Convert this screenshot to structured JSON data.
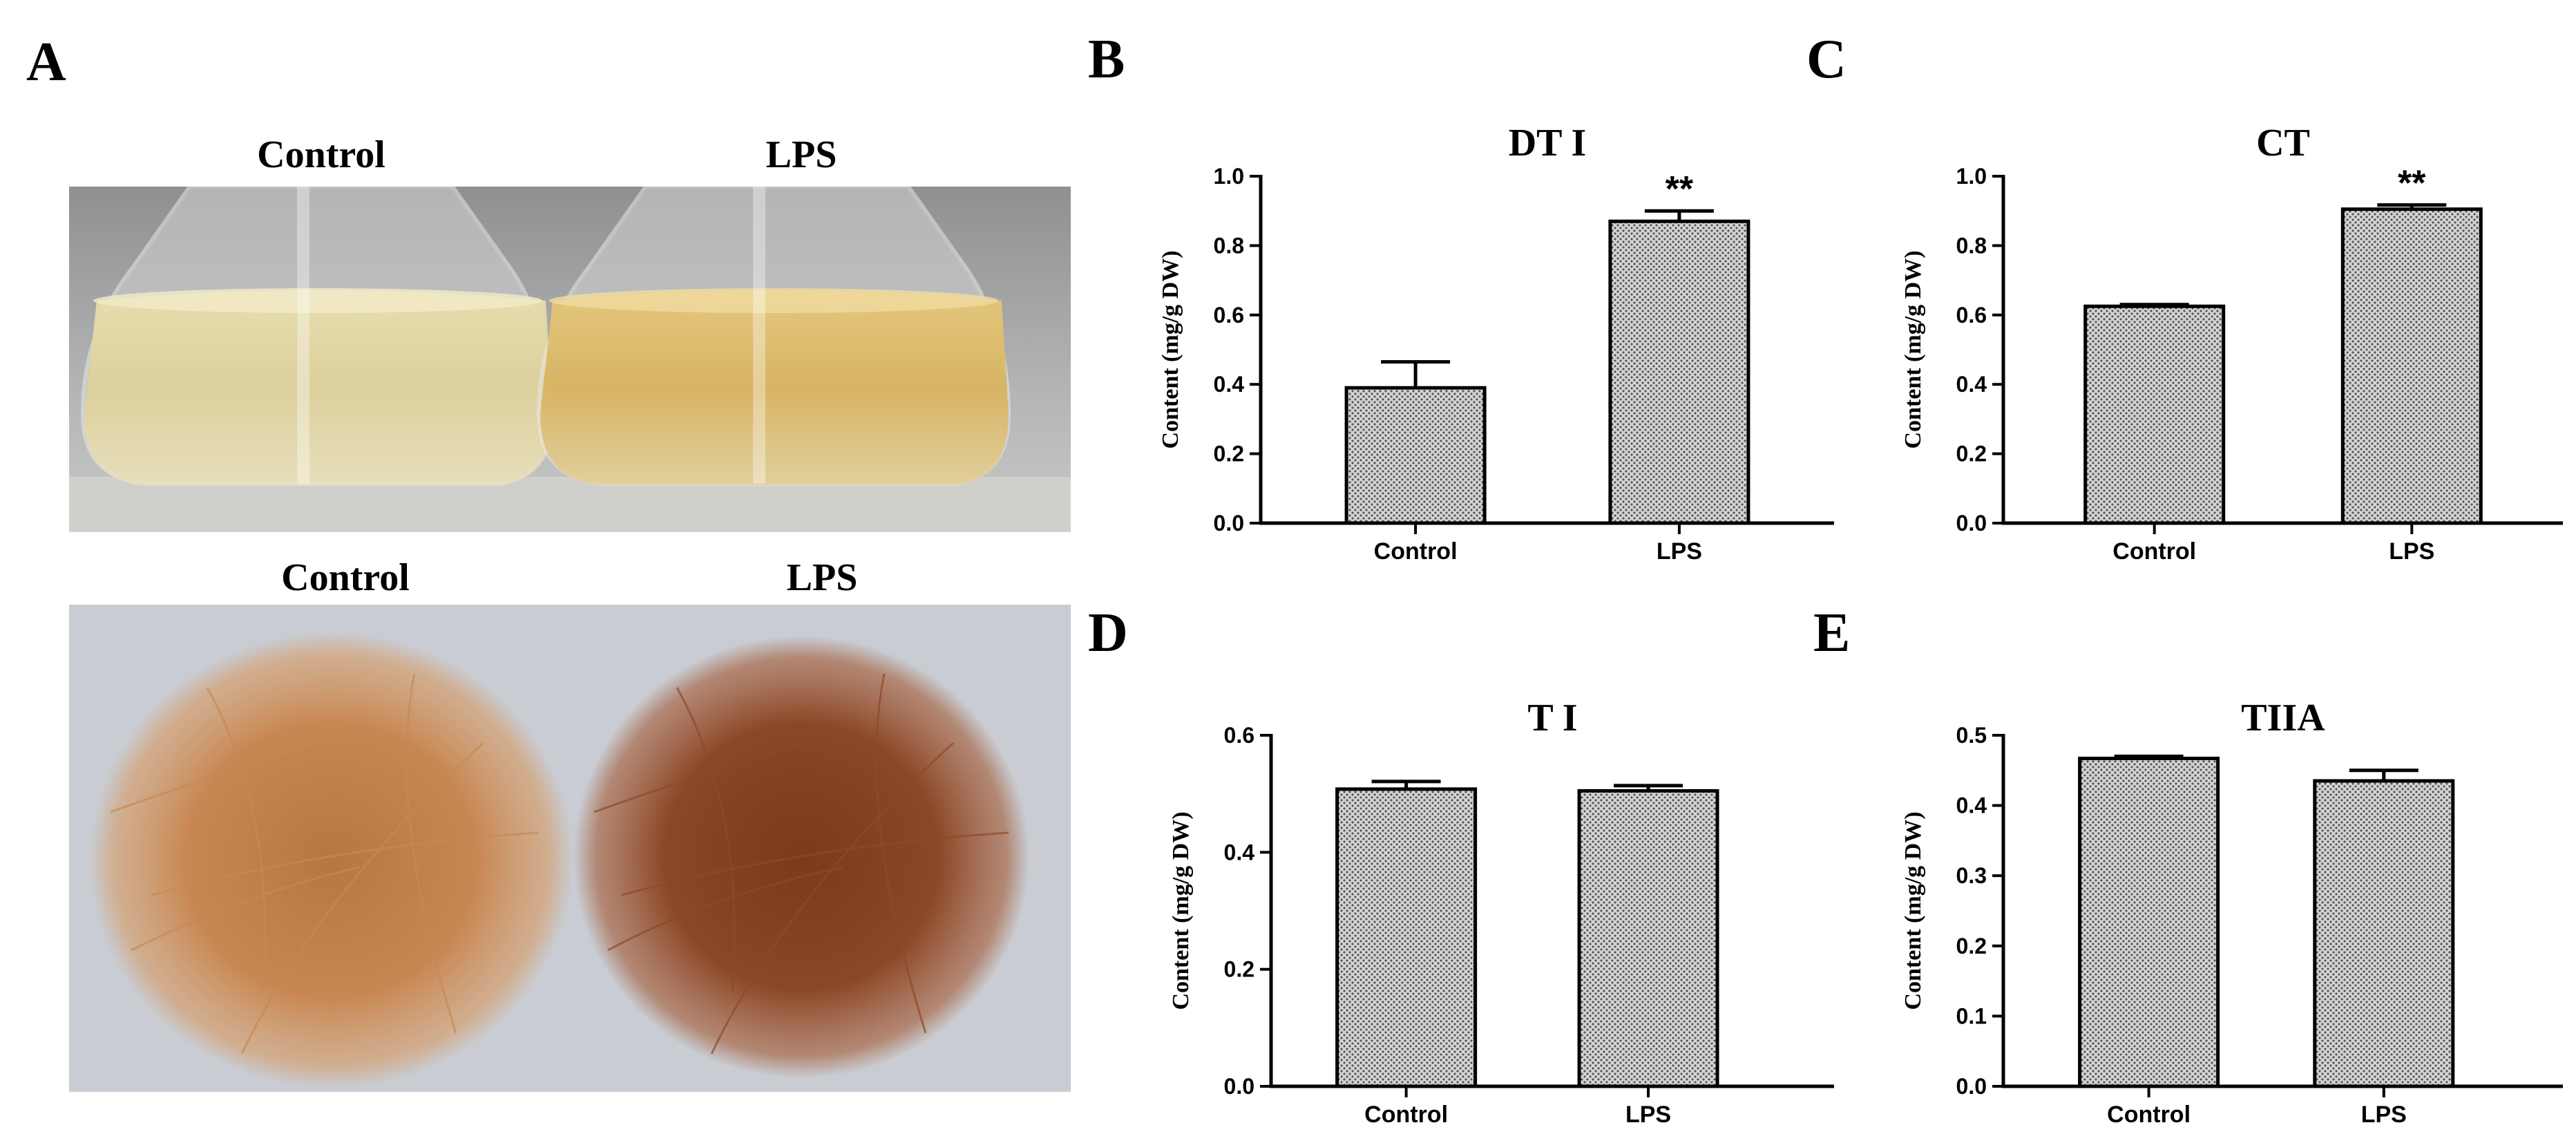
{
  "panel_a": {
    "letter": "A",
    "top_photo": {
      "left_label": "Control",
      "right_label": "LPS"
    },
    "bottom_photo": {
      "left_label": "Control",
      "right_label": "LPS"
    }
  },
  "colors": {
    "bar_fill": "#b8b8b8",
    "axis": "#000000"
  },
  "chart_data": [
    {
      "letter": "B",
      "type": "bar",
      "title": "DT I",
      "categories": [
        "Control",
        "LPS"
      ],
      "values": [
        0.39,
        0.87
      ],
      "errors": [
        0.075,
        0.03
      ],
      "significance": [
        "",
        "**"
      ],
      "ylabel": "Content (mg/g DW)",
      "ylim": [
        0,
        1.0
      ],
      "yticks": [
        "0.0",
        "0.2",
        "0.4",
        "0.6",
        "0.8",
        "1.0"
      ]
    },
    {
      "letter": "C",
      "type": "bar",
      "title": "CT",
      "categories": [
        "Control",
        "LPS"
      ],
      "values": [
        0.625,
        0.905
      ],
      "errors": [
        0.005,
        0.012
      ],
      "significance": [
        "",
        "**"
      ],
      "ylabel": "Content (mg/g DW)",
      "ylim": [
        0,
        1.0
      ],
      "yticks": [
        "0.0",
        "0.2",
        "0.4",
        "0.6",
        "0.8",
        "1.0"
      ]
    },
    {
      "letter": "D",
      "type": "bar",
      "title": "T I",
      "categories": [
        "Control",
        "LPS"
      ],
      "values": [
        0.508,
        0.505
      ],
      "errors": [
        0.013,
        0.009
      ],
      "significance": [
        "",
        ""
      ],
      "ylabel": "Content (mg/g DW)",
      "ylim": [
        0,
        0.6
      ],
      "yticks": [
        "0.0",
        "0.2",
        "0.4",
        "0.6"
      ]
    },
    {
      "letter": "E",
      "type": "bar",
      "title": "TIIA",
      "categories": [
        "Control",
        "LPS"
      ],
      "values": [
        0.467,
        0.435
      ],
      "errors": [
        0.003,
        0.015
      ],
      "significance": [
        "",
        ""
      ],
      "ylabel": "Content (mg/g DW)",
      "ylim": [
        0,
        0.5
      ],
      "yticks": [
        "0.0",
        "0.1",
        "0.2",
        "0.3",
        "0.4",
        "0.5"
      ]
    }
  ]
}
